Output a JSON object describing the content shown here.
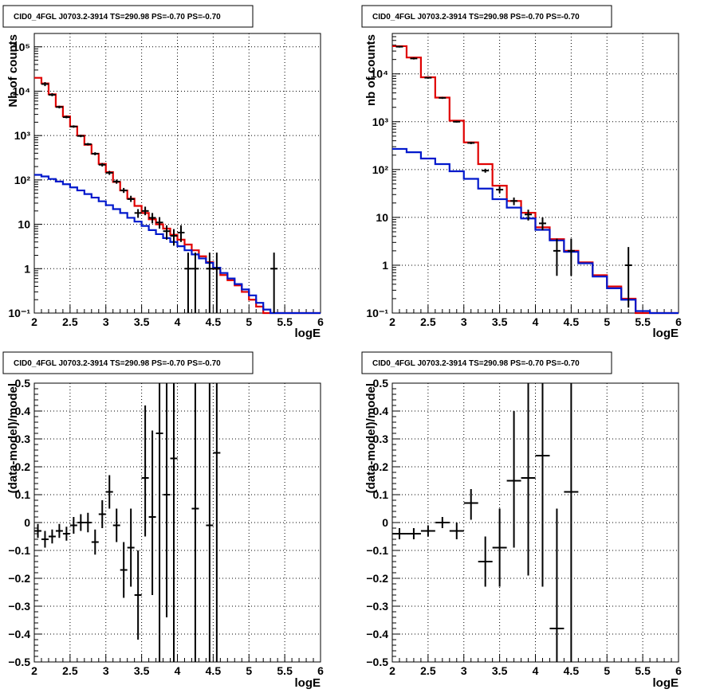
{
  "colors": {
    "data": "#000000",
    "total_model": "#e00000",
    "component": "#0018cc",
    "grid": "#000000",
    "frame": "#000000"
  },
  "chart_data": [
    {
      "id": "tl",
      "type": "line",
      "title": "CID0_4FGL J0703.2-3914 TS=290.98 PS=-0.70 PS=-0.70",
      "xlabel": "logE",
      "ylabel": "Nb of counts",
      "xlim": [
        2,
        6
      ],
      "ylim": [
        0.1,
        200000
      ],
      "ylog": true,
      "grid": true,
      "xticks": [
        2,
        2.5,
        3,
        3.5,
        4,
        4.5,
        5,
        5.5,
        6
      ],
      "xtick_labels": [
        "2",
        "2.5",
        "3",
        "3.5",
        "4",
        "4.5",
        "5",
        "5.5",
        "6"
      ],
      "yticks": [
        0.1,
        1,
        10,
        100,
        1000,
        10000,
        100000
      ],
      "ytick_labels": [
        "10⁻¹",
        "1",
        "10",
        "10²",
        "10³",
        "10⁴",
        "10⁵"
      ],
      "step_series": [
        {
          "key": "total_model",
          "color": "#e00000",
          "edges": [
            2,
            2.1,
            2.2,
            2.3,
            2.4,
            2.5,
            2.6,
            2.7,
            2.8,
            2.9,
            3,
            3.1,
            3.2,
            3.3,
            3.4,
            3.5,
            3.6,
            3.7,
            3.8,
            3.9,
            4,
            4.1,
            4.2,
            4.3,
            4.4,
            4.5,
            4.6,
            4.7,
            4.8,
            4.9,
            5,
            5.1,
            5.2,
            5.3,
            5.4,
            5.5,
            5.6,
            5.7,
            5.8,
            5.9,
            6
          ],
          "values": [
            20000,
            15000,
            8500,
            4500,
            2700,
            1600,
            1000,
            620,
            390,
            230,
            150,
            90,
            58,
            38,
            26,
            18,
            13,
            10,
            8,
            5.8,
            4.5,
            3.5,
            2.6,
            1.9,
            1.4,
            1.0,
            0.72,
            0.55,
            0.42,
            0.3,
            0.2,
            0.14,
            0.1,
            0.1,
            0.1,
            0.1,
            0.1,
            0.1,
            0.1,
            0.1
          ]
        },
        {
          "key": "component",
          "color": "#0018cc",
          "edges": [
            2,
            2.1,
            2.2,
            2.3,
            2.4,
            2.5,
            2.6,
            2.7,
            2.8,
            2.9,
            3,
            3.1,
            3.2,
            3.3,
            3.4,
            3.5,
            3.6,
            3.7,
            3.8,
            3.9,
            4,
            4.1,
            4.2,
            4.3,
            4.4,
            4.5,
            4.6,
            4.7,
            4.8,
            4.9,
            5,
            5.1,
            5.2,
            5.3,
            5.4,
            5.5,
            5.6,
            5.7,
            5.8,
            5.9,
            6
          ],
          "values": [
            130,
            120,
            105,
            92,
            80,
            68,
            58,
            48,
            40,
            33,
            27,
            22,
            18,
            14,
            11.5,
            9.2,
            7.4,
            6,
            4.9,
            4,
            3.2,
            2.6,
            2.1,
            1.7,
            1.35,
            1.05,
            0.8,
            0.6,
            0.45,
            0.34,
            0.25,
            0.17,
            0.12,
            0.1,
            0.1,
            0.1,
            0.1,
            0.1,
            0.1,
            0.1
          ]
        }
      ],
      "points": {
        "x": [
          2.15,
          2.25,
          2.35,
          2.45,
          2.55,
          2.65,
          2.75,
          2.85,
          2.95,
          3.05,
          3.15,
          3.25,
          3.35,
          3.45,
          3.55,
          3.65,
          3.75,
          3.85,
          3.95,
          4.05,
          4.15,
          4.25,
          4.45,
          4.55,
          5.35
        ],
        "y": [
          14500,
          8300,
          4400,
          2600,
          1600,
          980,
          640,
          390,
          220,
          145,
          92,
          58,
          37,
          18,
          20,
          14,
          11,
          7,
          5.5,
          6.5,
          1,
          1,
          1,
          1,
          1
        ],
        "ylo": [
          13000,
          7700,
          4100,
          2450,
          1500,
          920,
          600,
          360,
          200,
          130,
          82,
          51,
          32,
          14,
          16,
          10.5,
          8,
          4.5,
          3.3,
          4,
          0.1,
          0.1,
          0.1,
          0.1,
          0.1
        ],
        "yhi": [
          16000,
          9000,
          4700,
          2800,
          1700,
          1040,
          680,
          420,
          240,
          160,
          102,
          66,
          44,
          22,
          25,
          18,
          14.5,
          9.5,
          7.8,
          9.5,
          2.3,
          2.3,
          2.3,
          2.3,
          2.3
        ]
      }
    },
    {
      "id": "tr",
      "type": "line",
      "title": "CID0_4FGL J0703.2-3914 TS=290.98 PS=-0.70 PS=-0.70",
      "xlabel": "logE",
      "ylabel": "nb of counts",
      "xlim": [
        2,
        6
      ],
      "ylim": [
        0.1,
        70000
      ],
      "ylog": true,
      "grid": true,
      "xticks": [
        2,
        2.5,
        3,
        3.5,
        4,
        4.5,
        5,
        5.5,
        6
      ],
      "xtick_labels": [
        "2",
        "2.5",
        "3",
        "3.5",
        "4",
        "4.5",
        "5",
        "5.5",
        "6"
      ],
      "yticks": [
        0.1,
        1,
        10,
        100,
        1000,
        10000
      ],
      "ytick_labels": [
        "10⁻¹",
        "1",
        "10",
        "10²",
        "10³",
        "10⁴"
      ],
      "step_series": [
        {
          "key": "total_model",
          "color": "#e00000",
          "edges": [
            2,
            2.2,
            2.4,
            2.6,
            2.8,
            3,
            3.2,
            3.4,
            3.6,
            3.8,
            4,
            4.2,
            4.4,
            4.6,
            4.8,
            5,
            5.2,
            5.4,
            5.6,
            5.8,
            6
          ],
          "values": [
            38000,
            22000,
            8500,
            3200,
            1050,
            370,
            130,
            46,
            22,
            12.5,
            6.2,
            3.5,
            2.0,
            1.15,
            0.62,
            0.36,
            0.2,
            0.1,
            0.1,
            0.1
          ]
        },
        {
          "key": "component",
          "color": "#0018cc",
          "edges": [
            2,
            2.2,
            2.4,
            2.6,
            2.8,
            3,
            3.2,
            3.4,
            3.6,
            3.8,
            4,
            4.2,
            4.4,
            4.6,
            4.8,
            5,
            5.2,
            5.4,
            5.6,
            5.8,
            6
          ],
          "values": [
            270,
            230,
            170,
            130,
            92,
            64,
            40,
            24,
            16,
            9.5,
            5.5,
            3.3,
            1.9,
            1.1,
            0.58,
            0.33,
            0.19,
            0.11,
            0.1,
            0.1
          ]
        }
      ],
      "points": {
        "x": [
          2.1,
          2.3,
          2.5,
          2.7,
          2.9,
          3.1,
          3.3,
          3.5,
          3.7,
          3.9,
          4.1,
          4.3,
          4.5,
          5.3
        ],
        "y": [
          37000,
          21000,
          8300,
          3150,
          1000,
          360,
          95,
          38,
          22,
          11.5,
          7.5,
          2.0,
          2.0,
          1.0
        ],
        "ylo": [
          35500,
          20000,
          7950,
          3000,
          960,
          340,
          86,
          32,
          18,
          8.6,
          5.4,
          0.6,
          0.6,
          0.13
        ],
        "yhi": [
          38500,
          22000,
          8650,
          3300,
          1040,
          380,
          104,
          44,
          26,
          14.5,
          10,
          3.6,
          3.6,
          2.4
        ]
      }
    },
    {
      "id": "bl",
      "type": "scatter",
      "title": "CID0_4FGL J0703.2-3914 TS=290.98 PS=-0.70 PS=-0.70",
      "xlabel": "logE",
      "ylabel": "(data-model)/model",
      "xlim": [
        2,
        6
      ],
      "ylim": [
        -0.5,
        0.5
      ],
      "ylog": false,
      "grid": true,
      "xticks": [
        2,
        2.5,
        3,
        3.5,
        4,
        4.5,
        5,
        5.5,
        6
      ],
      "xtick_labels": [
        "2",
        "2.5",
        "3",
        "3.5",
        "4",
        "4.5",
        "5",
        "5.5",
        "6"
      ],
      "yticks": [
        -0.5,
        -0.4,
        -0.3,
        -0.2,
        -0.1,
        0,
        0.1,
        0.2,
        0.3,
        0.4,
        0.5
      ],
      "ytick_labels": [
        "−0.5",
        "−0.4",
        "−0.3",
        "−0.2",
        "−0.1",
        "0",
        "0.1",
        "0.2",
        "0.3",
        "0.4",
        "0.5"
      ],
      "points": {
        "x": [
          2.05,
          2.15,
          2.25,
          2.35,
          2.45,
          2.55,
          2.65,
          2.75,
          2.85,
          2.95,
          3.05,
          3.15,
          3.25,
          3.35,
          3.45,
          3.55,
          3.65,
          3.75,
          3.85,
          3.95,
          4.25,
          4.45,
          4.55
        ],
        "xerr": 0.05,
        "y": [
          -0.03,
          -0.06,
          -0.05,
          -0.03,
          -0.04,
          -0.01,
          0.0,
          0.0,
          -0.07,
          0.03,
          0.11,
          -0.01,
          -0.17,
          -0.09,
          -0.26,
          0.16,
          0.02,
          0.32,
          0.1,
          0.23,
          0.05,
          -0.01,
          0.25
        ],
        "ylo": [
          -0.055,
          -0.09,
          -0.075,
          -0.055,
          -0.065,
          -0.04,
          -0.03,
          -0.035,
          -0.115,
          -0.02,
          0.05,
          -0.07,
          -0.27,
          -0.23,
          -0.42,
          -0.05,
          -0.26,
          -0.5,
          -0.34,
          -0.5,
          -0.5,
          -0.5,
          -0.5
        ],
        "yhi": [
          -0.005,
          -0.03,
          -0.025,
          -0.005,
          -0.015,
          0.02,
          0.03,
          0.035,
          -0.025,
          0.08,
          0.17,
          0.05,
          -0.07,
          0.05,
          -0.1,
          0.42,
          0.33,
          0.5,
          0.5,
          0.5,
          0.5,
          0.5,
          0.5
        ]
      }
    },
    {
      "id": "br",
      "type": "scatter",
      "title": "CID0_4FGL J0703.2-3914 TS=290.98 PS=-0.70 PS=-0.70",
      "xlabel": "logE",
      "ylabel": "(data-model)/model",
      "xlim": [
        2,
        6
      ],
      "ylim": [
        -0.5,
        0.5
      ],
      "ylog": false,
      "grid": true,
      "xticks": [
        2,
        2.5,
        3,
        3.5,
        4,
        4.5,
        5,
        5.5,
        6
      ],
      "xtick_labels": [
        "2",
        "2.5",
        "3",
        "3.5",
        "4",
        "4.5",
        "5",
        "5.5",
        "6"
      ],
      "yticks": [
        -0.5,
        -0.4,
        -0.3,
        -0.2,
        -0.1,
        0,
        0.1,
        0.2,
        0.3,
        0.4,
        0.5
      ],
      "ytick_labels": [
        "−0.5",
        "−0.4",
        "−0.3",
        "−0.2",
        "−0.1",
        "0",
        "0.1",
        "0.2",
        "0.3",
        "0.4",
        "0.5"
      ],
      "points": {
        "x": [
          2.1,
          2.3,
          2.5,
          2.7,
          2.9,
          3.1,
          3.3,
          3.5,
          3.7,
          3.9,
          4.1,
          4.3,
          4.5
        ],
        "xerr": 0.1,
        "y": [
          -0.04,
          -0.04,
          -0.03,
          0.0,
          -0.03,
          0.07,
          -0.14,
          -0.09,
          0.15,
          0.16,
          0.24,
          -0.38,
          0.11
        ],
        "ylo": [
          -0.06,
          -0.06,
          -0.05,
          -0.02,
          -0.06,
          0.01,
          -0.23,
          -0.23,
          -0.09,
          -0.19,
          -0.23,
          -0.5,
          -0.5
        ],
        "yhi": [
          -0.02,
          -0.02,
          -0.01,
          0.02,
          0.0,
          0.12,
          -0.05,
          0.05,
          0.4,
          0.5,
          0.5,
          0.05,
          0.5
        ]
      }
    }
  ]
}
